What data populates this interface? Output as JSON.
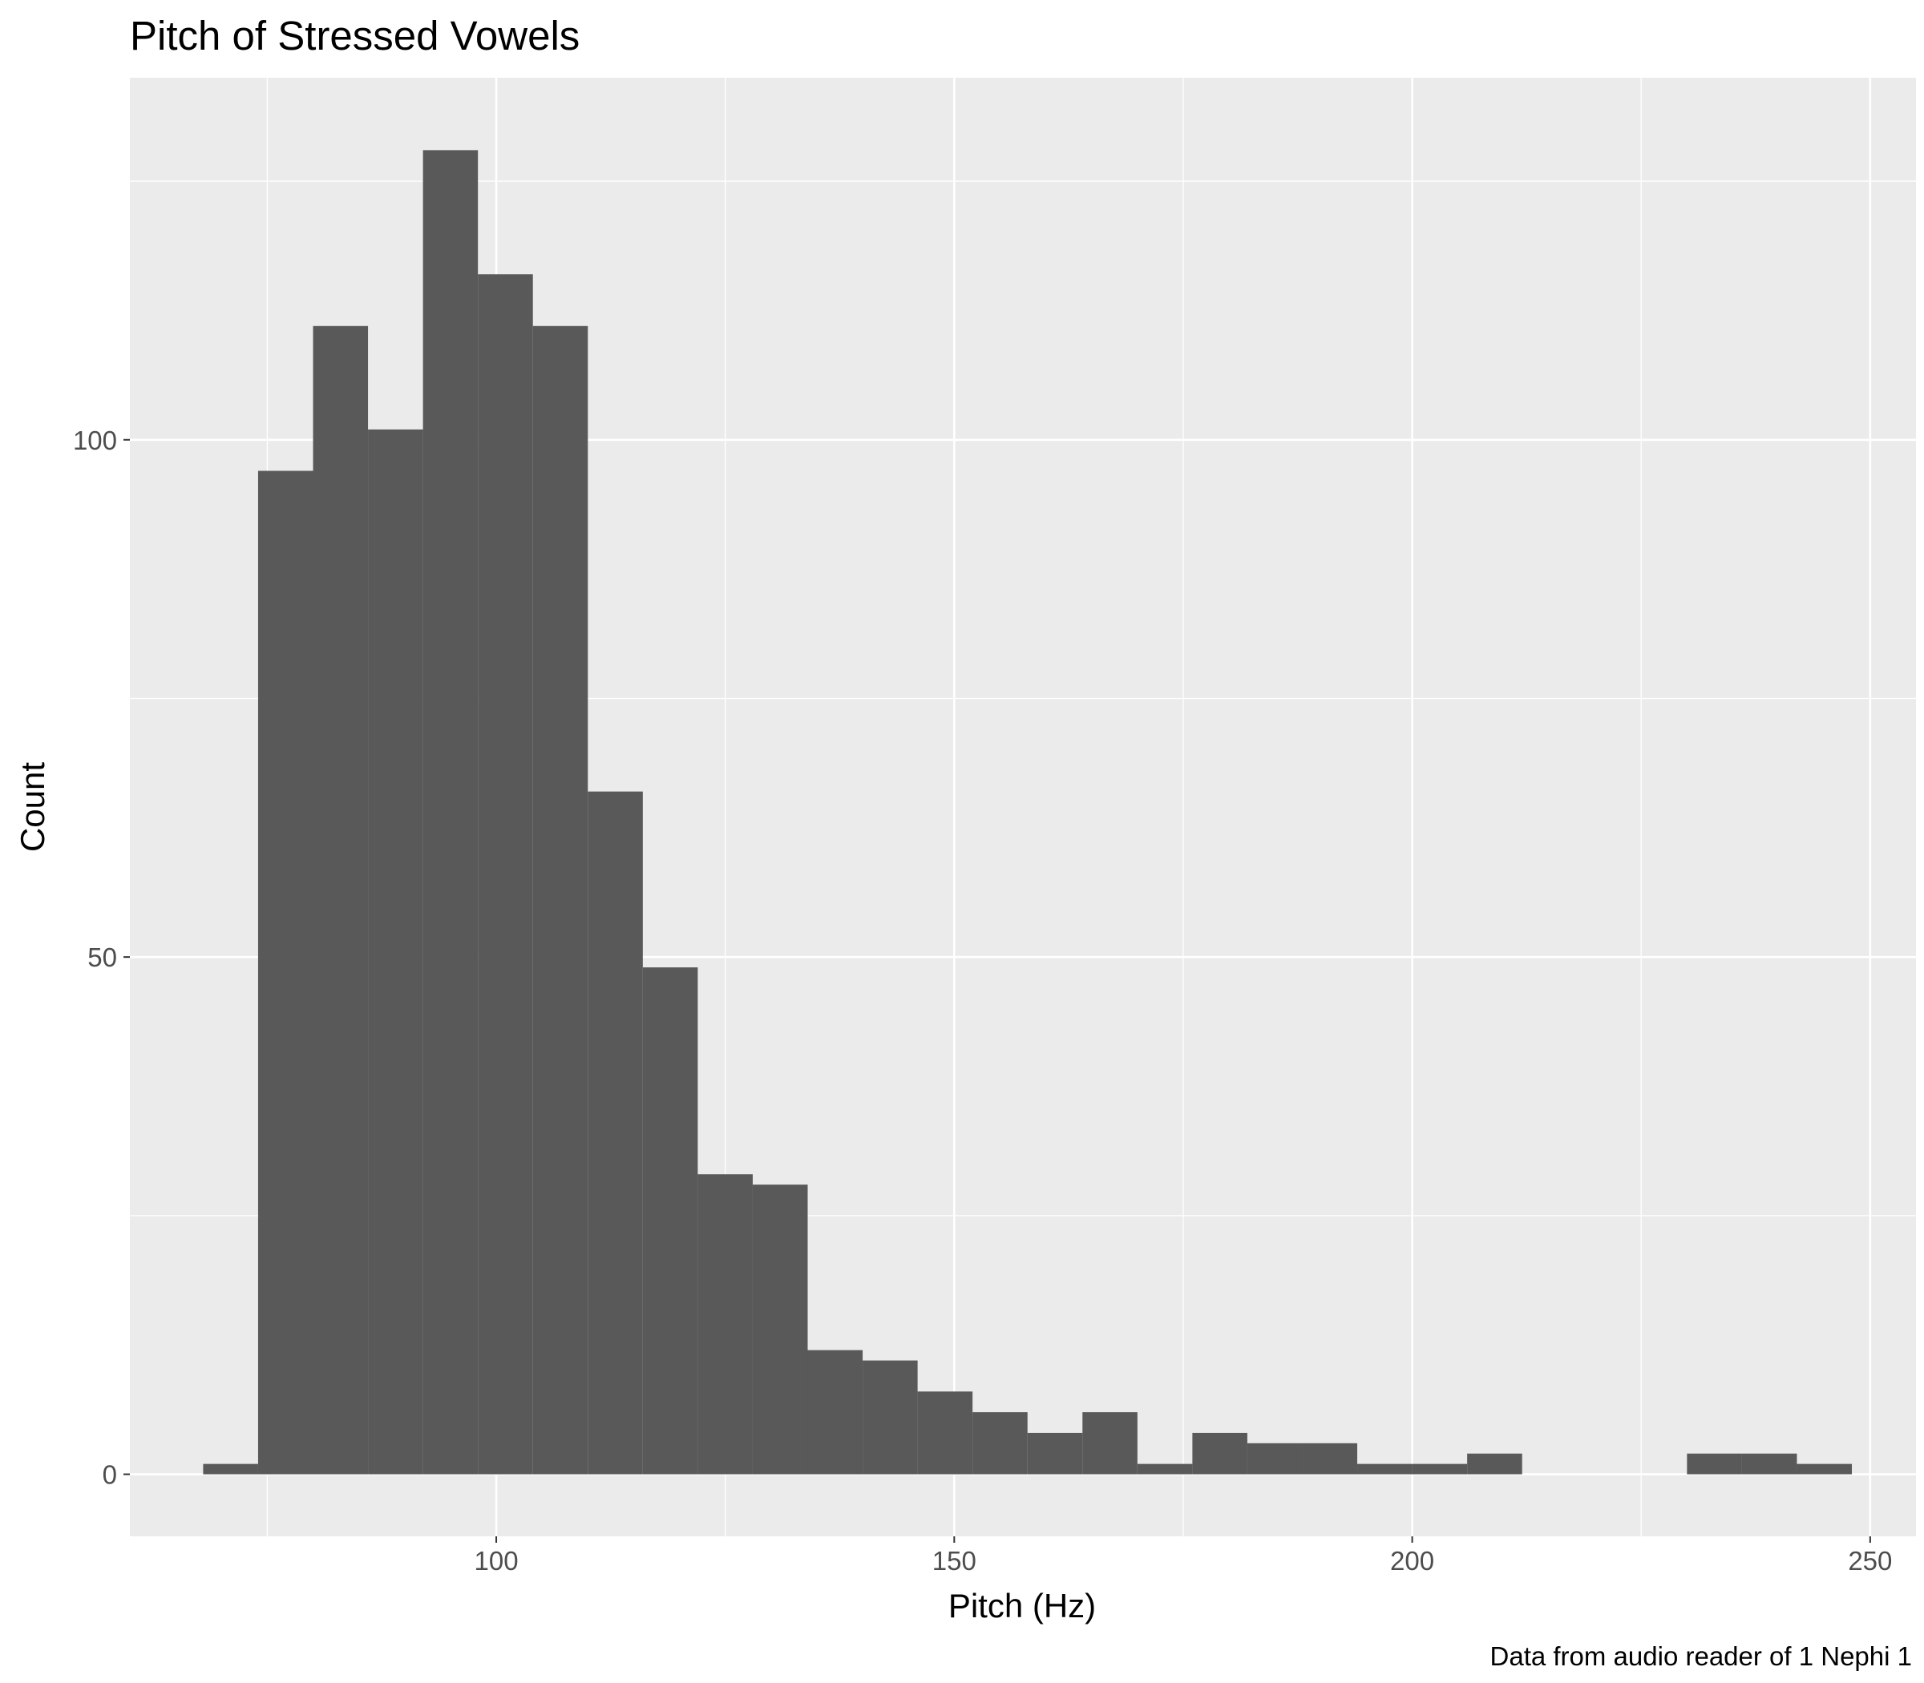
{
  "chart_data": {
    "type": "bar",
    "title": "Pitch of Stressed Vowels",
    "xlabel": "Pitch (Hz)",
    "ylabel": "Count",
    "caption": "Data from audio reader of 1 Nephi 1",
    "xlim": [
      60,
      255
    ],
    "ylim": [
      -6,
      135
    ],
    "x_ticks": [
      100,
      150,
      200,
      250
    ],
    "x_tick_labels": [
      "100",
      "150",
      "200",
      "250"
    ],
    "y_ticks": [
      0,
      50,
      100
    ],
    "y_tick_labels": [
      "0",
      "50",
      "100"
    ],
    "bin_width": 6,
    "bins": [
      {
        "x0": 68,
        "x1": 74,
        "count": 1
      },
      {
        "x0": 74,
        "x1": 80,
        "count": 97
      },
      {
        "x0": 80,
        "x1": 86,
        "count": 111
      },
      {
        "x0": 86,
        "x1": 92,
        "count": 101
      },
      {
        "x0": 92,
        "x1": 98,
        "count": 128
      },
      {
        "x0": 98,
        "x1": 104,
        "count": 116
      },
      {
        "x0": 104,
        "x1": 110,
        "count": 111
      },
      {
        "x0": 110,
        "x1": 116,
        "count": 66
      },
      {
        "x0": 116,
        "x1": 122,
        "count": 49
      },
      {
        "x0": 122,
        "x1": 128,
        "count": 29
      },
      {
        "x0": 128,
        "x1": 134,
        "count": 28
      },
      {
        "x0": 134,
        "x1": 140,
        "count": 12
      },
      {
        "x0": 140,
        "x1": 146,
        "count": 11
      },
      {
        "x0": 146,
        "x1": 152,
        "count": 8
      },
      {
        "x0": 152,
        "x1": 158,
        "count": 6
      },
      {
        "x0": 158,
        "x1": 164,
        "count": 4
      },
      {
        "x0": 164,
        "x1": 170,
        "count": 6
      },
      {
        "x0": 170,
        "x1": 176,
        "count": 1
      },
      {
        "x0": 176,
        "x1": 182,
        "count": 4
      },
      {
        "x0": 182,
        "x1": 188,
        "count": 3
      },
      {
        "x0": 188,
        "x1": 194,
        "count": 3
      },
      {
        "x0": 194,
        "x1": 200,
        "count": 1
      },
      {
        "x0": 200,
        "x1": 206,
        "count": 1
      },
      {
        "x0": 206,
        "x1": 212,
        "count": 2
      },
      {
        "x0": 212,
        "x1": 218,
        "count": 0
      },
      {
        "x0": 218,
        "x1": 224,
        "count": 0
      },
      {
        "x0": 224,
        "x1": 230,
        "count": 0
      },
      {
        "x0": 230,
        "x1": 236,
        "count": 2
      },
      {
        "x0": 236,
        "x1": 242,
        "count": 2
      },
      {
        "x0": 242,
        "x1": 248,
        "count": 1
      }
    ],
    "grid": true,
    "colors": {
      "panel_background": "#ebebeb",
      "grid_line": "#ffffff",
      "bar_fill": "#595959",
      "tick_label": "#4d4d4d",
      "tick_mark": "#333333"
    }
  }
}
